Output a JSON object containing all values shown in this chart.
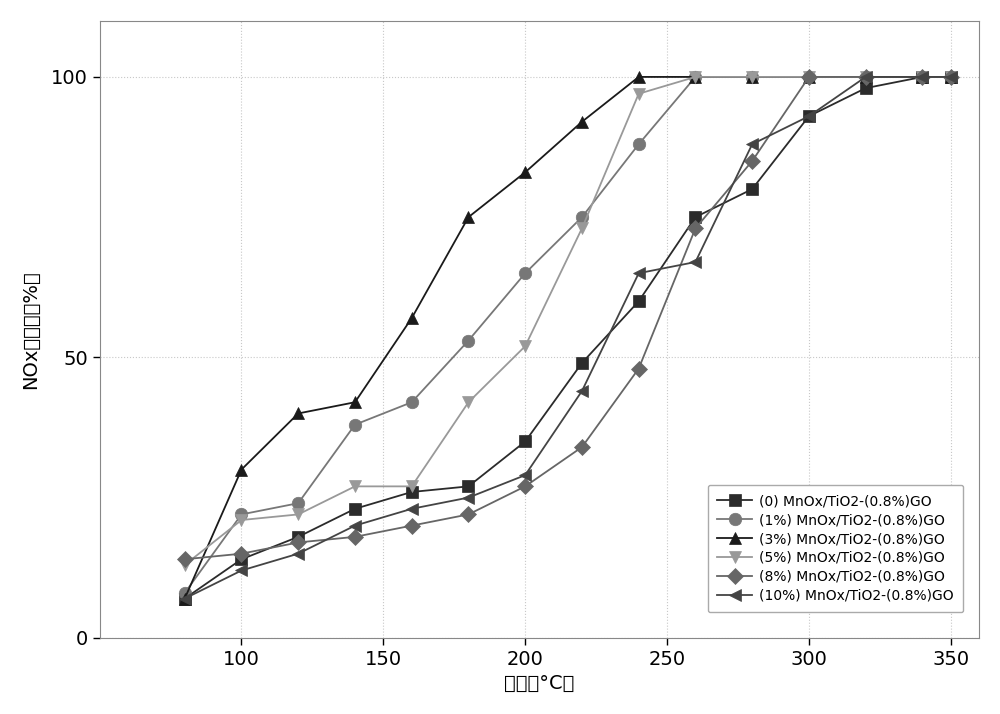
{
  "series": [
    {
      "label": "(0) MnOx/TiO2-(0.8%)GO",
      "color": "#2b2b2b",
      "marker": "s",
      "markersize": 8,
      "linestyle": "-",
      "x": [
        80,
        100,
        120,
        140,
        160,
        180,
        200,
        220,
        240,
        260,
        280,
        300,
        320,
        340,
        350
      ],
      "y": [
        7,
        14,
        18,
        23,
        26,
        27,
        35,
        49,
        60,
        75,
        80,
        93,
        98,
        100,
        100
      ]
    },
    {
      "label": "(1%) MnOx/TiO2-(0.8%)GO",
      "color": "#777777",
      "marker": "o",
      "markersize": 9,
      "linestyle": "-",
      "x": [
        80,
        100,
        120,
        140,
        160,
        180,
        200,
        220,
        240,
        260,
        280,
        300,
        320,
        340,
        350
      ],
      "y": [
        8,
        22,
        24,
        38,
        42,
        53,
        65,
        75,
        88,
        100,
        100,
        100,
        100,
        100,
        100
      ]
    },
    {
      "label": "(3%) MnOx/TiO2-(0.8%)GO",
      "color": "#1a1a1a",
      "marker": "^",
      "markersize": 9,
      "linestyle": "-",
      "x": [
        80,
        100,
        120,
        140,
        160,
        180,
        200,
        220,
        240,
        260,
        280,
        300,
        320,
        340,
        350
      ],
      "y": [
        7,
        30,
        40,
        42,
        57,
        75,
        83,
        92,
        100,
        100,
        100,
        100,
        100,
        100,
        100
      ]
    },
    {
      "label": "(5%) MnOx/TiO2-(0.8%)GO",
      "color": "#999999",
      "marker": "v",
      "markersize": 9,
      "linestyle": "-",
      "x": [
        80,
        100,
        120,
        140,
        160,
        180,
        200,
        220,
        240,
        260,
        280,
        300,
        320,
        340,
        350
      ],
      "y": [
        13,
        21,
        22,
        27,
        27,
        42,
        52,
        73,
        97,
        100,
        100,
        100,
        100,
        100,
        100
      ]
    },
    {
      "label": "(8%) MnOx/TiO2-(0.8%)GO",
      "color": "#666666",
      "marker": "D",
      "markersize": 8,
      "linestyle": "-",
      "x": [
        80,
        100,
        120,
        140,
        160,
        180,
        200,
        220,
        240,
        260,
        280,
        300,
        320,
        340,
        350
      ],
      "y": [
        14,
        15,
        17,
        18,
        20,
        22,
        27,
        34,
        48,
        73,
        85,
        100,
        100,
        100,
        100
      ]
    },
    {
      "label": "(10%) MnOx/TiO2-(0.8%)GO",
      "color": "#444444",
      "marker": "<",
      "markersize": 9,
      "linestyle": "-",
      "x": [
        80,
        100,
        120,
        140,
        160,
        180,
        200,
        220,
        240,
        260,
        280,
        300,
        320,
        340,
        350
      ],
      "y": [
        7,
        12,
        15,
        20,
        23,
        25,
        29,
        44,
        65,
        67,
        88,
        93,
        100,
        100,
        100
      ]
    }
  ],
  "xlabel_cn": "温度（°C）",
  "xlabel_plain": "温度 (°C )",
  "ylabel_cn": "NOx去除率（%）",
  "ylabel_line1": "NOx去除率",
  "ylabel_line2": "(%)",
  "xlim": [
    50,
    360
  ],
  "ylim": [
    0,
    110
  ],
  "xticks": [
    100,
    150,
    200,
    250,
    300,
    350
  ],
  "yticks": [
    0,
    50,
    100
  ],
  "background_color": "#ffffff",
  "grid": true,
  "grid_color": "#c8c8c8",
  "grid_linestyle": ":"
}
